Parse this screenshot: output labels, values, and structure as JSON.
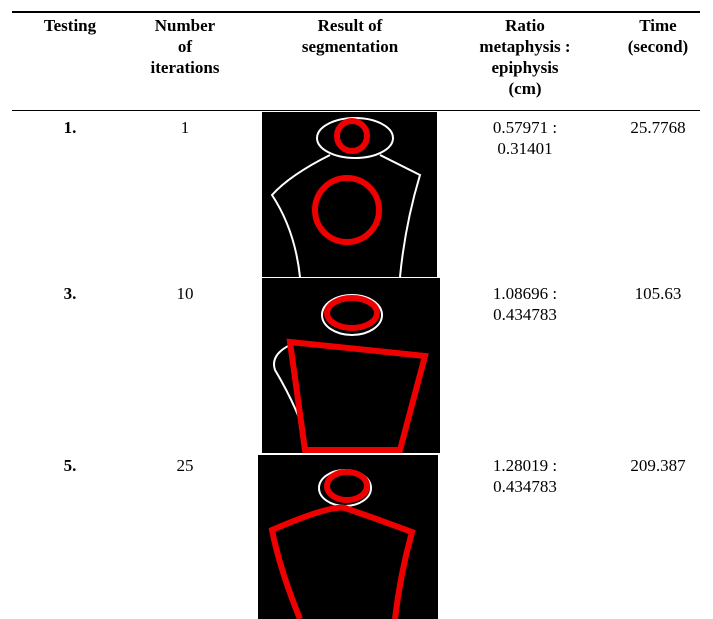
{
  "table": {
    "header": [
      [
        "Testing"
      ],
      [
        "Number",
        "of",
        "iterations"
      ],
      [
        "Result of",
        "segmentation"
      ],
      [
        "Ratio",
        "metaphysis :",
        "epiphysis",
        "(cm)"
      ],
      [
        "Time",
        "(second)"
      ]
    ],
    "rows": [
      {
        "testing": "1.",
        "iterations": "1",
        "ratio": [
          "0.57971 :",
          "0.31401"
        ],
        "time": "25.7768"
      },
      {
        "testing": "3.",
        "iterations": "10",
        "ratio": [
          "1.08696 :",
          "0.434783"
        ],
        "time": "105.63"
      },
      {
        "testing": "5.",
        "iterations": "25",
        "ratio": [
          "1.28019 :",
          "0.434783"
        ],
        "time": "209.387"
      }
    ]
  }
}
